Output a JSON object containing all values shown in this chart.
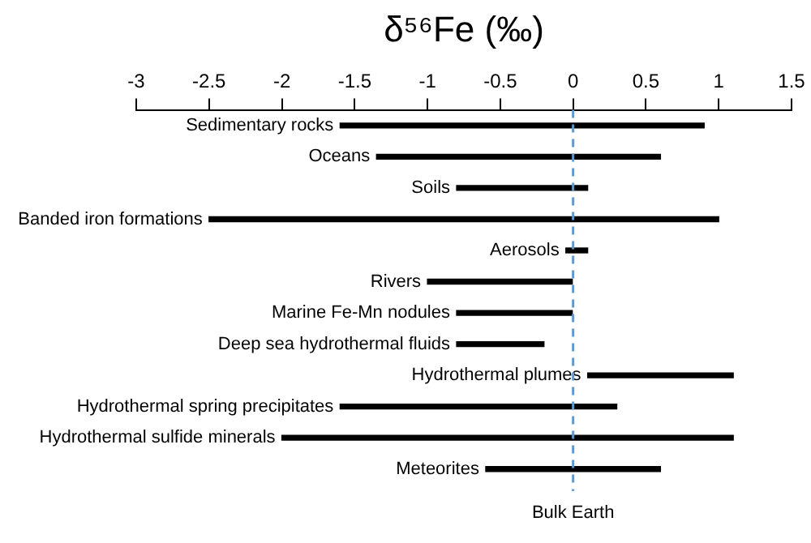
{
  "chart_data": {
    "type": "bar",
    "title": "δ⁵⁶Fe (‰)",
    "orientation": "horizontal",
    "categories": [
      "Sedimentary rocks",
      "Oceans",
      "Soils",
      "Banded iron formations",
      "Aerosols",
      "Rivers",
      "Marine Fe-Mn nodules",
      "Deep sea hydrothermal fluids",
      "Hydrothermal plumes",
      "Hydrothermal spring precipitates",
      "Hydrothermal sulfide minerals",
      "Meteorites"
    ],
    "base": [
      -1.6,
      -1.35,
      -0.8,
      -2.5,
      -0.05,
      -1.0,
      -0.8,
      -0.8,
      0.1,
      -1.6,
      -2.0,
      -0.6
    ],
    "values": [
      2.5,
      1.95,
      0.9,
      3.5,
      0.15,
      1.0,
      0.8,
      0.6,
      1.0,
      1.9,
      3.1,
      1.2
    ],
    "color": "#000000",
    "xlim": [
      -3,
      1.5
    ],
    "xticks": [
      -3,
      -2.5,
      -2,
      -1.5,
      -1,
      -0.5,
      0,
      0.5,
      1,
      1.5
    ],
    "ref_lines": [
      {
        "axis": "x",
        "value": 0,
        "label": "Bulk Earth",
        "color": "#5b9bd5",
        "line_style": "dashed"
      }
    ],
    "grid": false,
    "legend": false
  }
}
